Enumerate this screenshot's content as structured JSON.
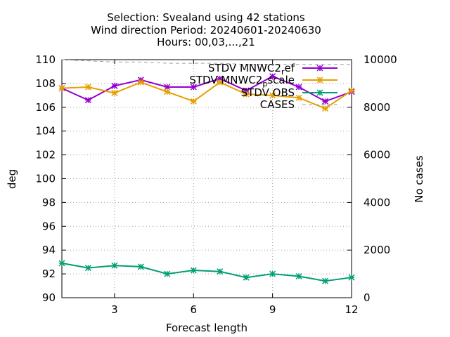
{
  "chart_data": {
    "type": "line",
    "title_lines": [
      "Selection: Svealand using    42 stations",
      "Wind direction   Period: 20240601-20240630",
      "Hours: 00,03,...,21"
    ],
    "xlabel": "Forecast length",
    "ylabel": "deg",
    "y2label": "No cases",
    "xlim": [
      1,
      12
    ],
    "ylim": [
      90,
      110
    ],
    "y2lim": [
      0,
      10000
    ],
    "xticks": [
      3,
      6,
      9,
      12
    ],
    "yticks": [
      90,
      92,
      94,
      96,
      98,
      100,
      102,
      104,
      106,
      108,
      110
    ],
    "y2ticks": [
      0,
      2000,
      4000,
      6000,
      8000,
      10000
    ],
    "grid": true,
    "legend_position": "top-right",
    "x": [
      1,
      2,
      3,
      4,
      5,
      6,
      7,
      8,
      9,
      10,
      11,
      12
    ],
    "series": [
      {
        "name": "STDV MNWC2_ref",
        "legend_main": "STDV MNWC2",
        "legend_sub": "r",
        "legend_rest": "ef",
        "color": "#9400d3",
        "axis": "y1",
        "values": [
          107.6,
          106.6,
          107.8,
          108.3,
          107.7,
          107.7,
          108.4,
          107.4,
          108.6,
          107.7,
          106.5,
          107.3
        ]
      },
      {
        "name": "STDV MNWC2_pscale",
        "legend_main": "STDV MNWC2",
        "legend_sub": "p",
        "legend_rest": "scale",
        "color": "#e69f00",
        "axis": "y1",
        "values": [
          107.6,
          107.7,
          107.2,
          108.1,
          107.3,
          106.5,
          108.1,
          107.1,
          107.0,
          106.8,
          105.9,
          107.4
        ]
      },
      {
        "name": "STDV OBS",
        "legend_main": "STDV OBS",
        "legend_sub": "",
        "legend_rest": "",
        "color": "#009e73",
        "axis": "y1",
        "values": [
          92.9,
          92.5,
          92.7,
          92.6,
          92.0,
          92.3,
          92.2,
          91.7,
          92.0,
          91.8,
          91.4,
          91.7
        ]
      },
      {
        "name": "CASES",
        "legend_main": "CASES",
        "legend_sub": "",
        "legend_rest": "",
        "color": "#a0a0a0",
        "axis": "y2",
        "dashed": true,
        "values": [
          10000,
          9950,
          9900,
          9900,
          9850,
          9850,
          9850,
          9800,
          9800,
          9800,
          9800,
          9800
        ]
      }
    ]
  }
}
